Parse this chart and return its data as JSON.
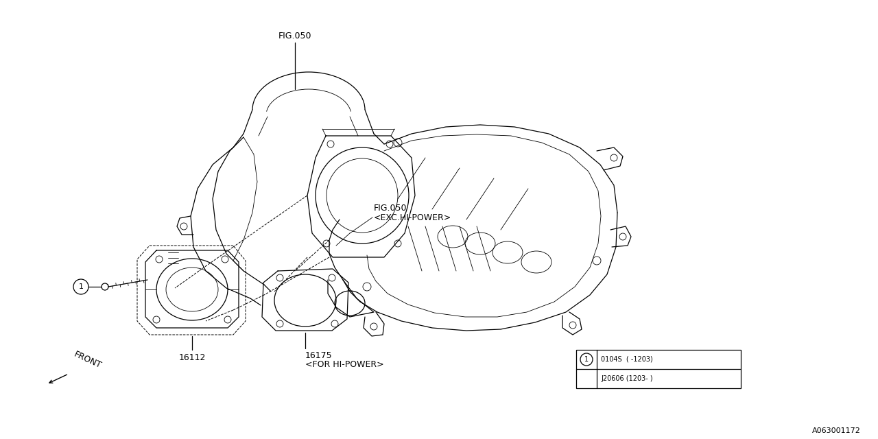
{
  "bg_color": "#ffffff",
  "line_color": "#000000",
  "label_fig050_top": "FIG.050",
  "label_fig050_exc_line1": "FIG.050",
  "label_fig050_exc_line2": "<EXC.HI-POWER>",
  "label_16112": "16112",
  "label_16175": "16175",
  "label_16175_sub": "<FOR HI-POWER>",
  "label_front": "FRONT",
  "label_ref1_row1": "0104S  ( -1203)",
  "label_ref1_row2": "J20606 (1203- )",
  "watermark": "A063001172",
  "font_size_labels": 9,
  "font_size_small": 8,
  "font_size_watermark": 8,
  "lw_main": 0.9,
  "lw_thin": 0.6,
  "lw_dashed": 0.7
}
